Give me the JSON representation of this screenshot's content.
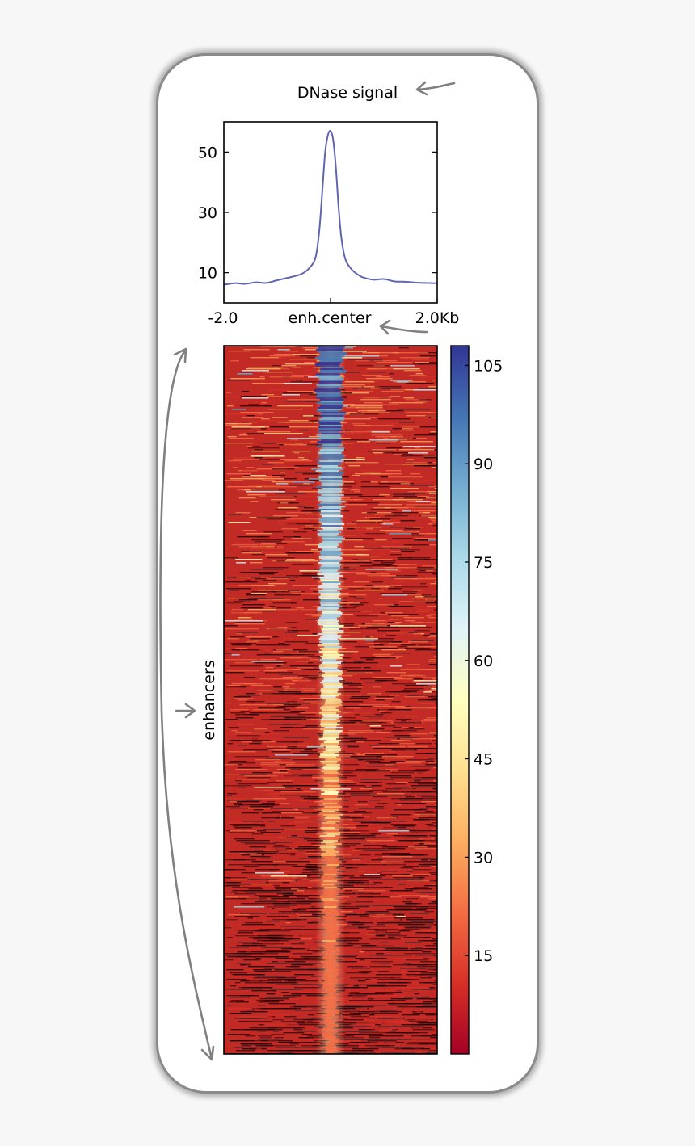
{
  "chart_data": [
    {
      "type": "line",
      "title": "DNase signal",
      "x_tick_labels": [
        "-2.0",
        "enh.center",
        "2.0Kb"
      ],
      "x_range_kb": [
        -2.0,
        2.0
      ],
      "y_ticks": [
        10,
        30,
        50
      ],
      "ylim": [
        0,
        60
      ],
      "grid": false,
      "series": [
        {
          "color": "#6065b0",
          "x": [
            -2.0,
            -1.8,
            -1.6,
            -1.4,
            -1.2,
            -1.0,
            -0.8,
            -0.6,
            -0.5,
            -0.4,
            -0.3,
            -0.25,
            -0.2,
            -0.15,
            -0.1,
            -0.05,
            0.0,
            0.05,
            0.1,
            0.15,
            0.2,
            0.25,
            0.3,
            0.4,
            0.5,
            0.6,
            0.8,
            1.0,
            1.2,
            1.4,
            1.6,
            1.8,
            2.0
          ],
          "y": [
            6.0,
            6.5,
            6.3,
            6.8,
            6.6,
            7.5,
            8.3,
            9.2,
            10.0,
            11.5,
            14.0,
            18.0,
            26.0,
            38.0,
            50.0,
            55.5,
            57.0,
            54.0,
            45.0,
            32.0,
            22.0,
            16.5,
            13.5,
            11.0,
            9.5,
            8.5,
            7.7,
            7.9,
            7.1,
            7.0,
            6.7,
            6.6,
            6.5
          ]
        }
      ]
    },
    {
      "type": "heatmap",
      "ylabel": "enhancers",
      "x_range_kb": [
        -2.0,
        2.0
      ],
      "colormap": "RdYlBu",
      "colorbar": {
        "ticks": [
          15,
          30,
          45,
          60,
          75,
          90,
          105
        ],
        "range": [
          0,
          108
        ]
      },
      "colors": {
        "low": "#a50026",
        "mid": "#ffffbf",
        "high": "#313695",
        "background": "#c22a26"
      }
    }
  ]
}
